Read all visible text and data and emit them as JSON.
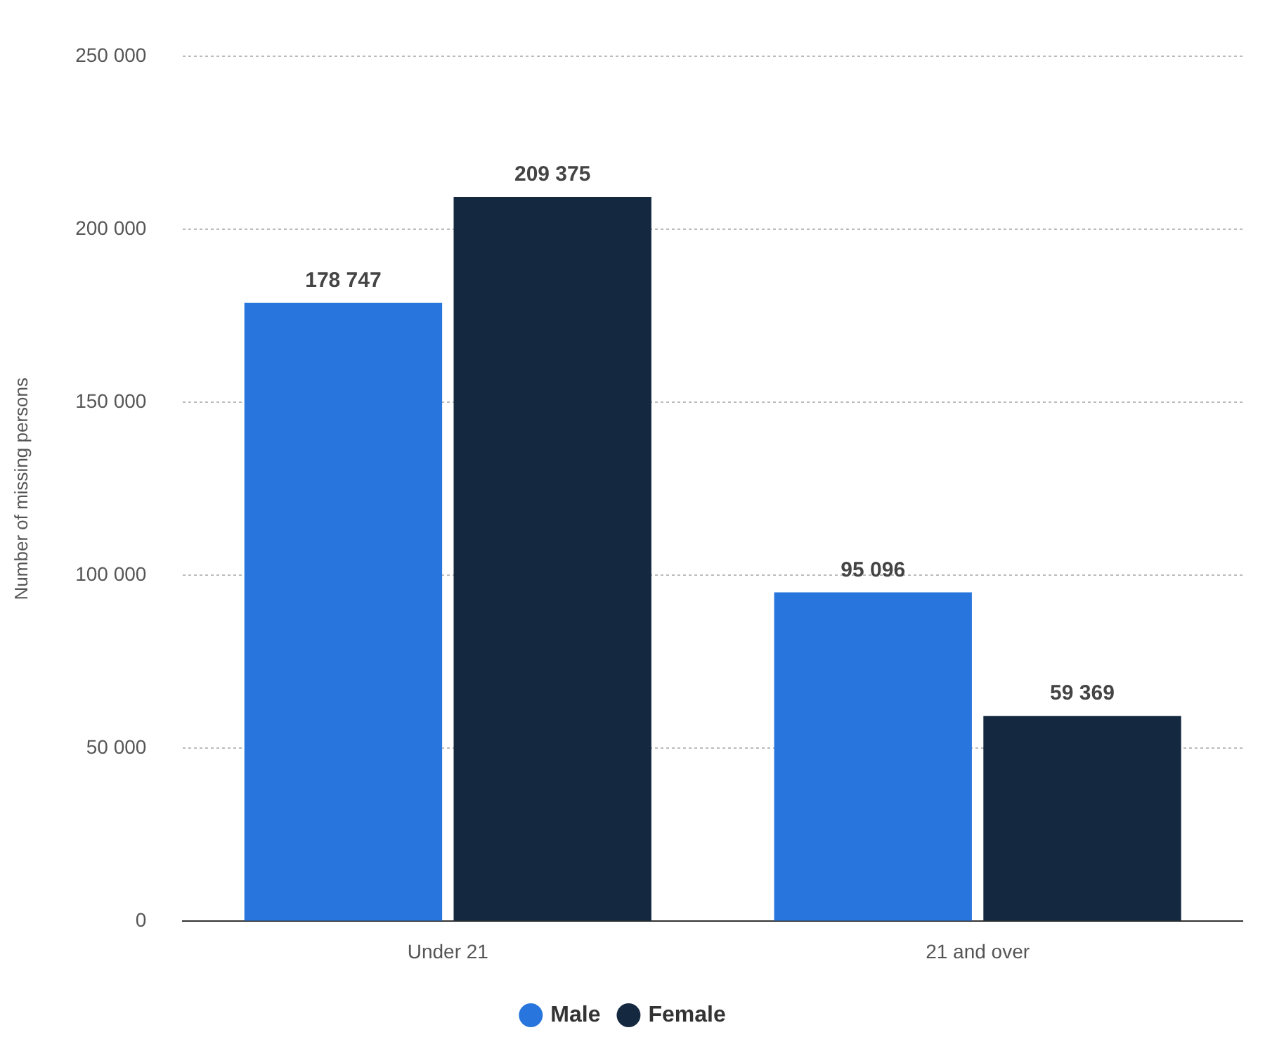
{
  "chart_data": {
    "type": "bar",
    "ylabel": "Number of missing persons",
    "categories": [
      "Under 21",
      "21 and over"
    ],
    "series": [
      {
        "name": "Male",
        "color": "#2876dd",
        "values": [
          178747,
          95096
        ]
      },
      {
        "name": "Female",
        "color": "#14283f",
        "values": [
          209375,
          59369
        ]
      }
    ],
    "ylim": [
      0,
      250000
    ],
    "yticks": [
      {
        "value": 0,
        "label": "0"
      },
      {
        "value": 50000,
        "label": "50 000"
      },
      {
        "value": 100000,
        "label": "100 000"
      },
      {
        "value": 150000,
        "label": "150 000"
      },
      {
        "value": 200000,
        "label": "200 000"
      },
      {
        "value": 250000,
        "label": "250 000"
      }
    ],
    "grid": "y",
    "legend": "bottom",
    "data_labels": true
  }
}
